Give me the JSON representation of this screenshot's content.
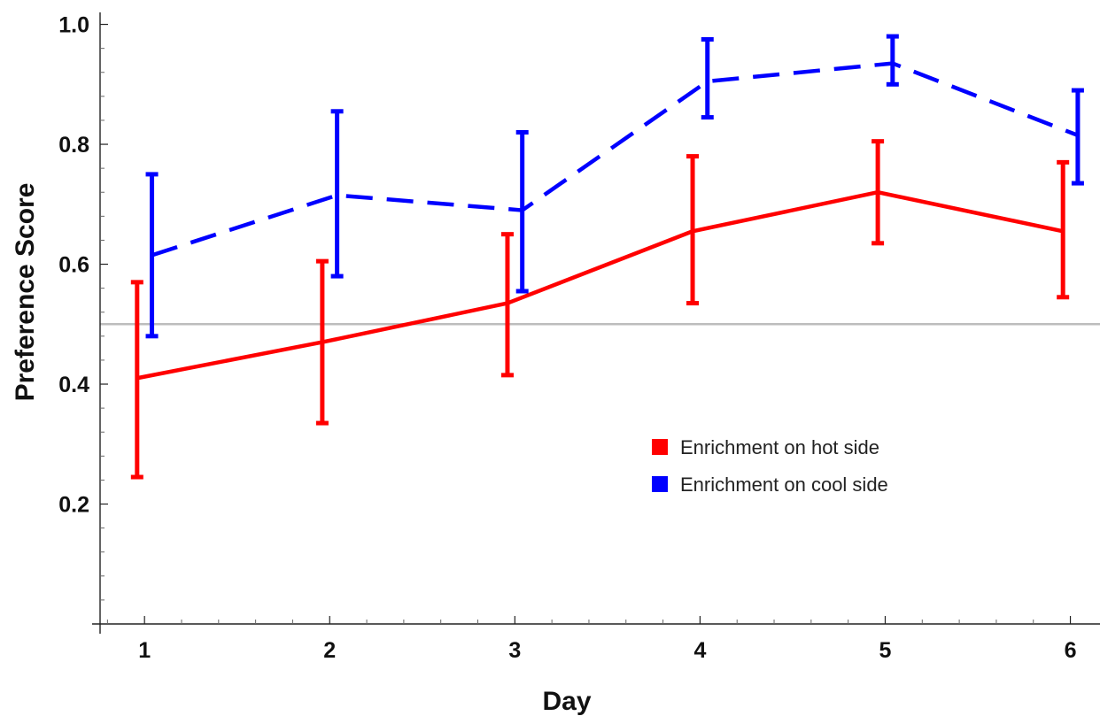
{
  "chart_data": {
    "type": "line",
    "title": "",
    "xlabel": "Day",
    "ylabel": "Preference Score",
    "x": [
      1,
      2,
      3,
      4,
      5,
      6
    ],
    "x_ticks": [
      "1",
      "2",
      "3",
      "4",
      "5",
      "6"
    ],
    "y_ticks": [
      "0.2",
      "0.4",
      "0.6",
      "0.8",
      "1.0"
    ],
    "xlim": [
      0.76,
      6.16
    ],
    "ylim": [
      0.0,
      1.02
    ],
    "reference_line": 0.5,
    "grid": false,
    "legend_position": "center-right",
    "series": [
      {
        "name": "Enrichment on hot side",
        "color": "#ff0000",
        "style": "solid",
        "x_offset": -0.04,
        "values": [
          0.41,
          0.47,
          0.535,
          0.655,
          0.72,
          0.655
        ],
        "err_low": [
          0.245,
          0.335,
          0.415,
          0.535,
          0.635,
          0.545
        ],
        "err_high": [
          0.57,
          0.605,
          0.65,
          0.78,
          0.805,
          0.77
        ]
      },
      {
        "name": "Enrichment on cool side",
        "color": "#0000ff",
        "style": "dashed",
        "x_offset": 0.04,
        "values": [
          0.615,
          0.715,
          0.69,
          0.905,
          0.935,
          0.815
        ],
        "err_low": [
          0.48,
          0.58,
          0.555,
          0.845,
          0.9,
          0.735
        ],
        "err_high": [
          0.75,
          0.855,
          0.82,
          0.975,
          0.98,
          0.89
        ]
      }
    ]
  }
}
